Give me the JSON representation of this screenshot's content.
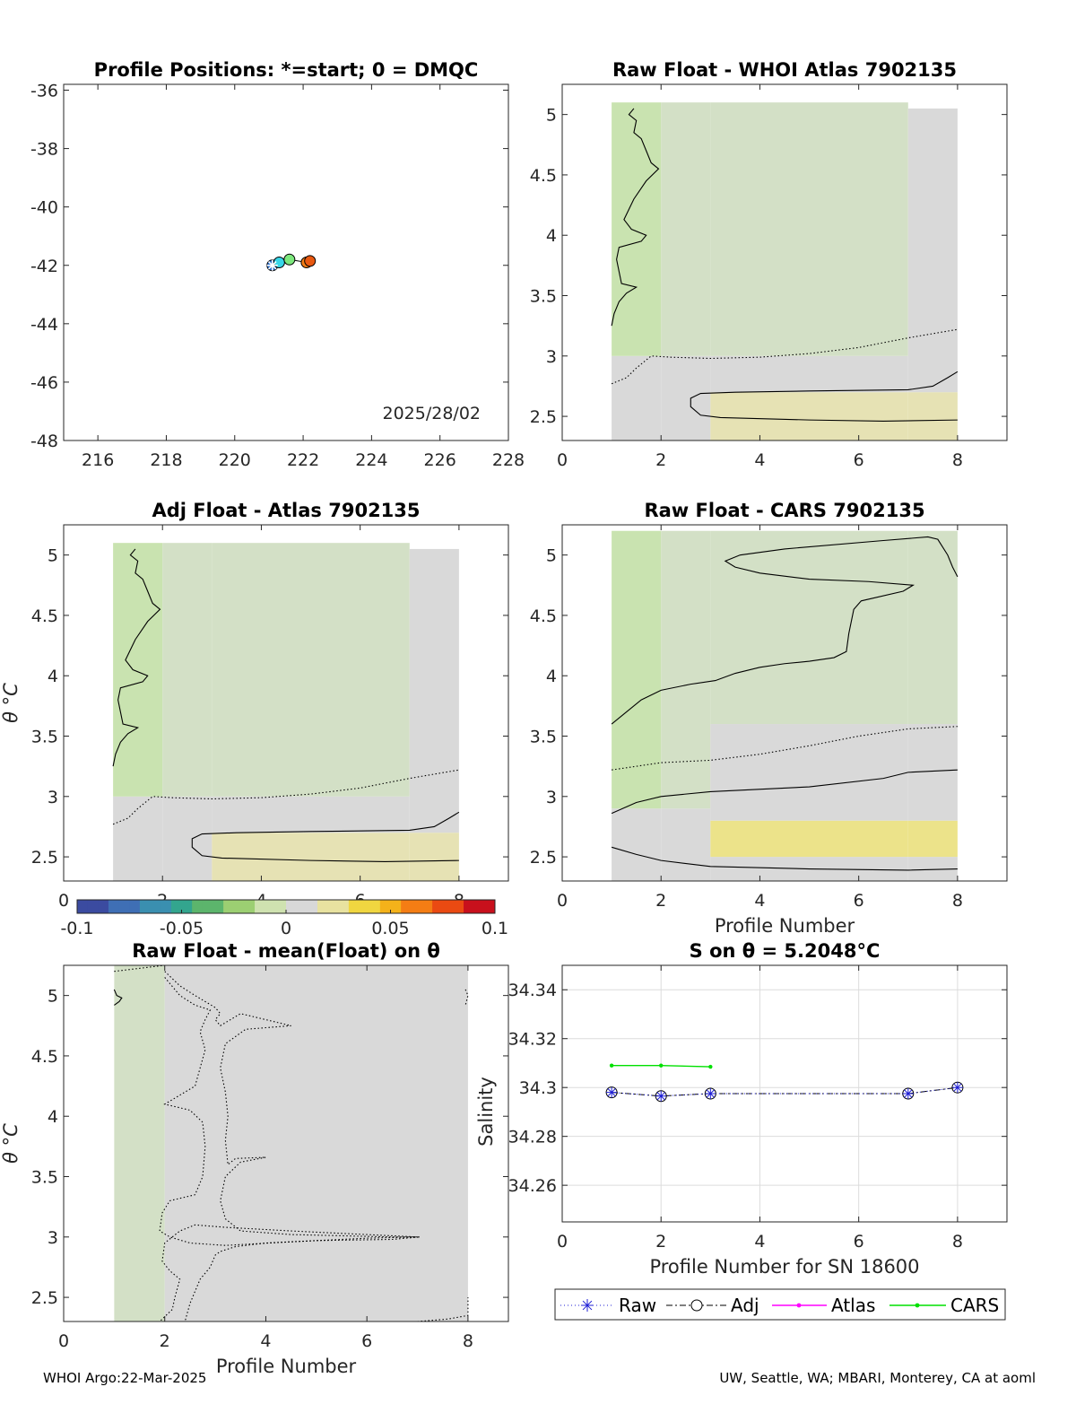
{
  "footer": {
    "left": "WHOI Argo:22-Mar-2025",
    "right": "UW, Seattle, WA; MBARI, Monterey, CA at aoml"
  },
  "colorbar": {
    "ticks": [
      "-0.1",
      "-0.05",
      "0",
      "0.05",
      "0.1"
    ],
    "colors": [
      "#3b4ba0",
      "#3f6fb5",
      "#3a8fb0",
      "#33a58e",
      "#5cb56c",
      "#9ccf72",
      "#cfe2b0",
      "#d8d8d8",
      "#e8e2a0",
      "#f0d640",
      "#f4b21a",
      "#f47d14",
      "#ea4a12",
      "#c8101c"
    ]
  },
  "charts": {
    "positions": {
      "title": "Profile Positions: *=start; 0 = DMQC",
      "date_text": "2025/28/02",
      "xticks": [
        "216",
        "218",
        "220",
        "222",
        "224",
        "226",
        "228"
      ],
      "yticks": [
        "-36",
        "-38",
        "-40",
        "-42",
        "-44",
        "-46",
        "-48"
      ]
    },
    "raw_whoi": {
      "title": "Raw Float - WHOI Atlas  7902135",
      "xticks": [
        "0",
        "2",
        "4",
        "6",
        "8"
      ],
      "yticks": [
        "5",
        "4.5",
        "4",
        "3.5",
        "3",
        "2.5"
      ]
    },
    "adj_atlas": {
      "title": "Adj Float - Atlas  7902135",
      "ylabel": "θ °C",
      "xticks": [
        "0",
        "2",
        "4",
        "6",
        "8"
      ],
      "yticks": [
        "5",
        "4.5",
        "4",
        "3.5",
        "3",
        "2.5"
      ]
    },
    "raw_cars": {
      "title": "Raw Float - CARS  7902135",
      "xlabel": "Profile Number",
      "xticks": [
        "0",
        "2",
        "4",
        "6",
        "8"
      ],
      "yticks": [
        "5",
        "4.5",
        "4",
        "3.5",
        "3",
        "2.5"
      ]
    },
    "raw_mean": {
      "title": "Raw Float - mean(Float) on θ",
      "ylabel": "θ °C",
      "xlabel": "Profile Number",
      "xticks": [
        "0",
        "2",
        "4",
        "6",
        "8"
      ],
      "yticks": [
        "5",
        "4.5",
        "4",
        "3.5",
        "3",
        "2.5"
      ]
    },
    "salinity": {
      "title": "S on θ = 5.2048°C",
      "ylabel": "Salinity",
      "xlabel": "Profile Number for SN 18600",
      "xticks": [
        "0",
        "2",
        "4",
        "6",
        "8"
      ],
      "yticks": [
        "34.34",
        "34.32",
        "34.3",
        "34.28",
        "34.26"
      ]
    }
  },
  "legend": {
    "raw": "Raw",
    "adj": "Adj",
    "atlas": "Atlas",
    "cars": "CARS"
  },
  "chart_data": [
    {
      "type": "scatter",
      "title": "Profile Positions: *=start; 0 = DMQC",
      "xlim": [
        215,
        228
      ],
      "ylim": [
        -48,
        -35.8
      ],
      "points": [
        {
          "x": 221.1,
          "y": -42.0,
          "color": "#2a70d0"
        },
        {
          "x": 221.3,
          "y": -41.9,
          "color": "#37d6e8"
        },
        {
          "x": 221.6,
          "y": -41.8,
          "color": "#7de87d"
        },
        {
          "x": 222.1,
          "y": -41.9,
          "color": "#f57d14"
        },
        {
          "x": 222.2,
          "y": -41.85,
          "color": "#e85810"
        }
      ]
    },
    {
      "type": "heatmap",
      "title": "Raw Float - WHOI Atlas  7902135",
      "xlim": [
        0,
        9
      ],
      "ylim": [
        2.3,
        5.25
      ],
      "profiles": [
        1,
        2,
        3,
        7,
        8
      ],
      "cells": [
        {
          "x": [
            1,
            2
          ],
          "y": [
            2.3,
            3.0
          ],
          "value": 0.0
        },
        {
          "x": [
            1,
            2
          ],
          "y": [
            3.0,
            5.1
          ],
          "value": -0.02
        },
        {
          "x": [
            2,
            3
          ],
          "y": [
            2.3,
            3.0
          ],
          "value": 0.0
        },
        {
          "x": [
            2,
            3
          ],
          "y": [
            3.0,
            5.1
          ],
          "value": -0.01
        },
        {
          "x": [
            3,
            7
          ],
          "y": [
            2.3,
            2.7
          ],
          "value": 0.01
        },
        {
          "x": [
            3,
            7
          ],
          "y": [
            2.7,
            3.0
          ],
          "value": 0.0
        },
        {
          "x": [
            3,
            7
          ],
          "y": [
            3.0,
            5.1
          ],
          "value": -0.01
        },
        {
          "x": [
            7,
            8
          ],
          "y": [
            2.3,
            2.7
          ],
          "value": 0.01
        },
        {
          "x": [
            7,
            8
          ],
          "y": [
            2.7,
            5.05
          ],
          "value": 0.0
        }
      ]
    },
    {
      "type": "heatmap",
      "title": "Adj Float - Atlas  7902135",
      "xlim": [
        0,
        9
      ],
      "ylim": [
        2.3,
        5.25
      ],
      "profiles": [
        1,
        2,
        3,
        7,
        8
      ],
      "cells": [
        {
          "x": [
            1,
            2
          ],
          "y": [
            2.3,
            3.0
          ],
          "value": 0.0
        },
        {
          "x": [
            1,
            2
          ],
          "y": [
            3.0,
            5.1
          ],
          "value": -0.02
        },
        {
          "x": [
            2,
            3
          ],
          "y": [
            2.3,
            3.0
          ],
          "value": 0.0
        },
        {
          "x": [
            2,
            3
          ],
          "y": [
            3.0,
            5.1
          ],
          "value": -0.01
        },
        {
          "x": [
            3,
            7
          ],
          "y": [
            2.3,
            2.7
          ],
          "value": 0.01
        },
        {
          "x": [
            3,
            7
          ],
          "y": [
            2.7,
            3.0
          ],
          "value": 0.0
        },
        {
          "x": [
            3,
            7
          ],
          "y": [
            3.0,
            5.1
          ],
          "value": -0.01
        },
        {
          "x": [
            7,
            8
          ],
          "y": [
            2.3,
            2.7
          ],
          "value": 0.01
        },
        {
          "x": [
            7,
            8
          ],
          "y": [
            2.7,
            5.05
          ],
          "value": 0.0
        }
      ]
    },
    {
      "type": "heatmap",
      "title": "Raw Float - CARS  7902135",
      "xlabel": "Profile Number",
      "xlim": [
        0,
        9
      ],
      "ylim": [
        2.3,
        5.25
      ],
      "profiles": [
        1,
        2,
        3,
        7,
        8
      ],
      "cells": [
        {
          "x": [
            1,
            2
          ],
          "y": [
            2.3,
            2.9
          ],
          "value": 0.0
        },
        {
          "x": [
            1,
            2
          ],
          "y": [
            2.9,
            5.2
          ],
          "value": -0.02
        },
        {
          "x": [
            2,
            3
          ],
          "y": [
            2.3,
            2.9
          ],
          "value": 0.0
        },
        {
          "x": [
            2,
            3
          ],
          "y": [
            2.9,
            5.2
          ],
          "value": -0.015
        },
        {
          "x": [
            3,
            7
          ],
          "y": [
            2.3,
            2.5
          ],
          "value": 0.0
        },
        {
          "x": [
            3,
            7
          ],
          "y": [
            2.5,
            2.8
          ],
          "value": 0.025
        },
        {
          "x": [
            3,
            7
          ],
          "y": [
            2.8,
            3.6
          ],
          "value": 0.0
        },
        {
          "x": [
            3,
            7
          ],
          "y": [
            3.6,
            5.2
          ],
          "value": -0.015
        },
        {
          "x": [
            7,
            8
          ],
          "y": [
            2.3,
            2.5
          ],
          "value": 0.0
        },
        {
          "x": [
            7,
            8
          ],
          "y": [
            2.5,
            2.8
          ],
          "value": 0.03
        },
        {
          "x": [
            7,
            8
          ],
          "y": [
            2.8,
            3.6
          ],
          "value": 0.0
        },
        {
          "x": [
            7,
            8
          ],
          "y": [
            3.6,
            5.2
          ],
          "value": -0.015
        }
      ]
    },
    {
      "type": "heatmap",
      "title": "Raw Float - mean(Float) on θ",
      "xlabel": "Profile Number",
      "xlim": [
        0,
        8.8
      ],
      "ylim": [
        2.3,
        5.25
      ],
      "profiles": [
        1,
        2,
        3,
        7,
        8
      ],
      "cells": [
        {
          "x": [
            1,
            2
          ],
          "y": [
            2.3,
            5.25
          ],
          "value": -0.005
        },
        {
          "x": [
            2,
            8
          ],
          "y": [
            2.3,
            5.25
          ],
          "value": 0.0
        }
      ]
    },
    {
      "type": "line",
      "title": "S on θ = 5.2048°C",
      "xlabel": "Profile Number for SN 18600",
      "ylabel": "Salinity",
      "xlim": [
        0,
        9
      ],
      "ylim": [
        34.245,
        34.35
      ],
      "grid": true,
      "legend": "bottom",
      "series": [
        {
          "name": "Raw",
          "x": [
            1,
            2,
            3,
            7,
            8
          ],
          "values": [
            34.298,
            34.2965,
            34.2975,
            34.2975,
            34.3
          ],
          "color": "#1f1fd6"
        },
        {
          "name": "Adj",
          "x": [
            1,
            2,
            3,
            7,
            8
          ],
          "values": [
            34.298,
            34.2965,
            34.2975,
            34.2975,
            34.3
          ],
          "color": "#000000"
        },
        {
          "name": "Atlas",
          "x": [],
          "values": [],
          "color": "#ff00ff"
        },
        {
          "name": "CARS",
          "x": [
            1,
            2,
            3
          ],
          "values": [
            34.309,
            34.309,
            34.3085
          ],
          "color": "#00e000"
        }
      ]
    }
  ]
}
